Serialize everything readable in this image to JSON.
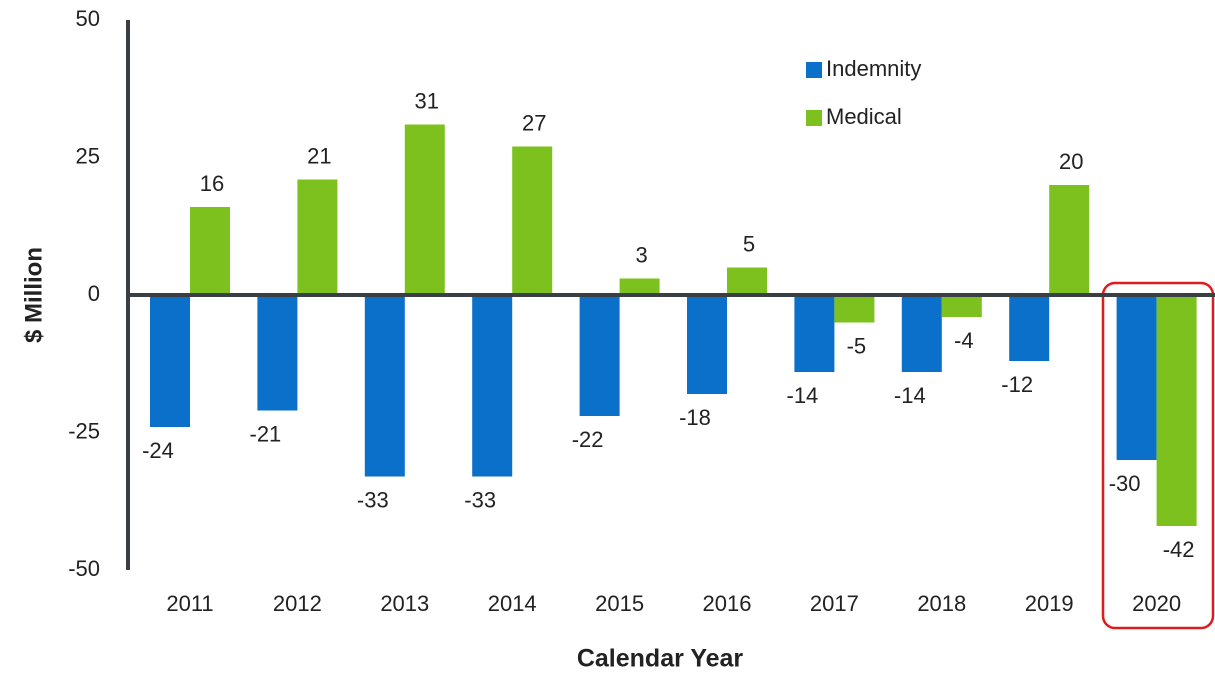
{
  "chart_data": {
    "type": "bar",
    "x_label": "Calendar Year",
    "y_label": "$ Million",
    "categories": [
      "2011",
      "2012",
      "2013",
      "2014",
      "2015",
      "2016",
      "2017",
      "2018",
      "2019",
      "2020"
    ],
    "series": [
      {
        "name": "Indemnity",
        "color": "#0a70c9",
        "values": [
          -24,
          -21,
          -33,
          -33,
          -22,
          -18,
          -14,
          -14,
          -12,
          -30
        ]
      },
      {
        "name": "Medical",
        "color": "#7dc11f",
        "values": [
          16,
          21,
          31,
          27,
          3,
          5,
          -5,
          -4,
          20,
          -42
        ]
      }
    ],
    "ylim": [
      -50,
      50
    ],
    "yticks": [
      -50,
      -25,
      0,
      25,
      50
    ],
    "legend": "top-right"
  }
}
